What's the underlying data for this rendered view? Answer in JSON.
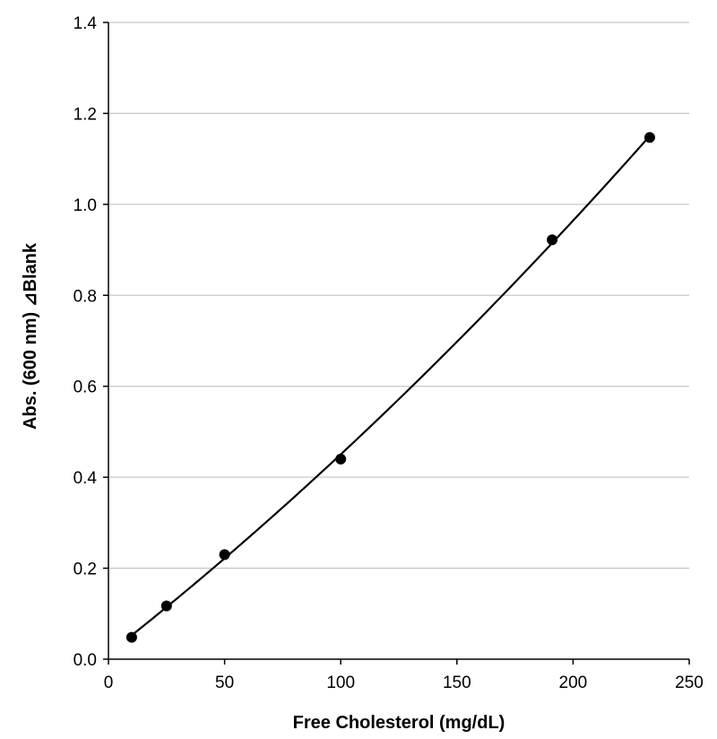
{
  "chart_data": {
    "type": "scatter",
    "title": "",
    "xlabel": "Free Cholesterol (mg/dL)",
    "ylabel": "Abs. (600 nm) ⊿Blank",
    "xlim": [
      0,
      250
    ],
    "ylim": [
      0,
      1.4
    ],
    "x_ticks": [
      "0",
      "50",
      "100",
      "150",
      "200",
      "250"
    ],
    "y_ticks": [
      "0.0",
      "0.2",
      "0.4",
      "0.6",
      "0.8",
      "1.0",
      "1.2",
      "1.4"
    ],
    "grid": "horizontal",
    "legend": "none",
    "series": [
      {
        "x": [
          10,
          25,
          50,
          100,
          191,
          233
        ],
        "y": [
          0.048,
          0.117,
          0.23,
          0.44,
          0.922,
          1.147
        ],
        "marker": "circle",
        "color": "#000000",
        "trendline": "polynomial"
      }
    ]
  }
}
